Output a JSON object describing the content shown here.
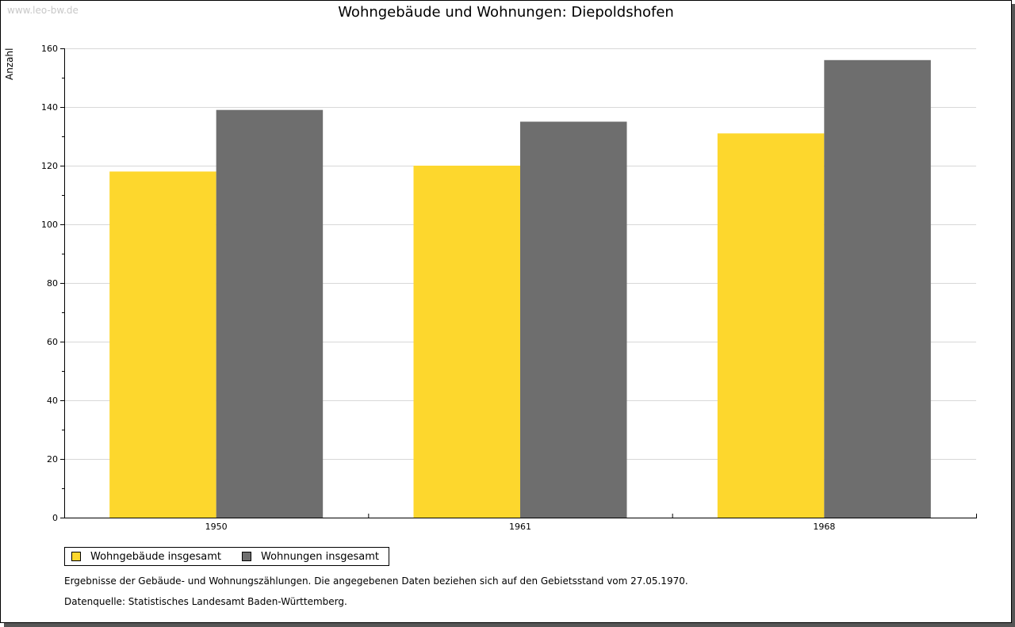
{
  "watermark": "www.leo-bw.de",
  "chart_data": {
    "type": "bar",
    "title": "Wohngebäude und Wohnungen: Diepoldshofen",
    "xlabel": "",
    "ylabel": "Anzahl",
    "ylim": [
      0,
      160
    ],
    "yticks": [
      0,
      20,
      40,
      60,
      80,
      100,
      120,
      140,
      160
    ],
    "grid": true,
    "legend_position": "bottom-left",
    "categories": [
      "1950",
      "1961",
      "1968"
    ],
    "series": [
      {
        "name": "Wohngebäude insgesamt",
        "color": "#fdd72d",
        "values": [
          118,
          120,
          131
        ]
      },
      {
        "name": "Wohnungen insgesamt",
        "color": "#6e6e6e",
        "values": [
          139,
          135,
          156
        ]
      }
    ]
  },
  "notes": [
    "Ergebnisse der Gebäude- und Wohnungszählungen. Die angegebenen Daten beziehen sich auf den Gebietsstand vom 27.05.1970.",
    "Datenquelle: Statistisches Landesamt Baden-Württemberg."
  ]
}
